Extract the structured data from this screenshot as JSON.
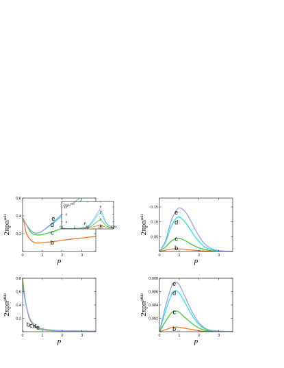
{
  "colors": {
    "b": "#ee7722",
    "c": "#33cc33",
    "d": "#22e5e5",
    "e": "#9a9fe6"
  },
  "chart_data": [
    {
      "id": "p1",
      "type": "line",
      "xlabel": "p",
      "ylabel": "2πpn",
      "ylabel_sup": "eeLi",
      "xlim": [
        0,
        3.7
      ],
      "ylim": [
        0,
        0.6
      ],
      "xticks": [
        0,
        1,
        2,
        3
      ],
      "yticks": [
        0,
        0.2,
        0.4,
        0.6
      ],
      "xticklabels": [
        "0",
        "1",
        "2",
        "3"
      ],
      "yticklabels": [
        "",
        "0.2",
        "0.4",
        "0.6"
      ],
      "series": [
        {
          "name": "b",
          "x": [
            0,
            0.1,
            0.2,
            0.4,
            0.6,
            0.8,
            1.0,
            1.5,
            2.0,
            2.5,
            3.0,
            3.7
          ],
          "y": [
            0.38,
            0.3,
            0.2,
            0.13,
            0.1,
            0.095,
            0.1,
            0.11,
            0.125,
            0.14,
            0.152,
            0.17
          ]
        },
        {
          "name": "c",
          "x": [
            0,
            0.2,
            0.4,
            0.6,
            0.8,
            1.0,
            1.5,
            2.0,
            2.3
          ],
          "y": [
            0.38,
            0.3,
            0.22,
            0.19,
            0.185,
            0.19,
            0.22,
            0.26,
            0.28
          ]
        },
        {
          "name": "d",
          "x": [
            0,
            0.2,
            0.4,
            0.6,
            0.8,
            1.0,
            1.5,
            2.0,
            2.5,
            3.0
          ],
          "y": [
            0.38,
            0.3,
            0.24,
            0.21,
            0.21,
            0.23,
            0.31,
            0.4,
            0.5,
            0.58
          ]
        },
        {
          "name": "e",
          "x": [
            0,
            0.2,
            0.4,
            0.6,
            0.8,
            1.0,
            1.5,
            2.0,
            2.5,
            3.0
          ],
          "y": [
            0.38,
            0.3,
            0.24,
            0.21,
            0.21,
            0.23,
            0.32,
            0.42,
            0.53,
            0.62
          ]
        }
      ],
      "labels": [
        {
          "text": "b",
          "x": 1.5,
          "y": 0.1
        },
        {
          "text": "c",
          "x": 1.5,
          "y": 0.21
        },
        {
          "text": "d",
          "x": 1.5,
          "y": 0.3
        },
        {
          "text": "e",
          "x": 1.55,
          "y": 0.37
        }
      ],
      "inset": {
        "type": "line",
        "ylabel": "2πpn",
        "ylabel_sup": "eeLi",
        "xlabel": "P",
        "x_scale": "log",
        "xlim": [
          0.1,
          1000
        ],
        "ylim": [
          0,
          15
        ],
        "xticks": [
          0.1,
          1,
          10,
          100,
          1000
        ],
        "xticklabels": [
          "0.1",
          "1",
          "10",
          "100",
          "1000"
        ],
        "yticks": [
          4,
          8,
          12
        ],
        "yticklabels": [
          "4",
          "8",
          "12"
        ],
        "series": [
          {
            "name": "b",
            "x": [
              0.1,
              1,
              10,
              30,
              60,
              100,
              150,
              300,
              1000
            ],
            "y": [
              0.2,
              0.2,
              0.5,
              1.2,
              1.8,
              2.0,
              1.6,
              0.8,
              0.3
            ]
          },
          {
            "name": "c",
            "x": [
              0.1,
              1,
              10,
              30,
              60,
              100,
              150,
              300,
              1000
            ],
            "y": [
              0.2,
              0.2,
              0.8,
              2.5,
              4.2,
              4.8,
              3.8,
              1.5,
              0.4
            ]
          },
          {
            "name": "d",
            "x": [
              0.1,
              1,
              10,
              30,
              60,
              100,
              150,
              300,
              1000
            ],
            "y": [
              0.2,
              0.2,
              1.2,
              4.5,
              7.5,
              8.5,
              6.5,
              2.5,
              0.5
            ]
          },
          {
            "name": "e",
            "x": [
              0.1,
              1,
              10,
              30,
              60,
              100,
              150,
              300,
              1000
            ],
            "y": [
              0.2,
              0.2,
              1.5,
              5.5,
              9.0,
              10.5,
              8.0,
              3.0,
              0.6
            ]
          }
        ],
        "labels": [
          {
            "text": "e",
            "x": 100,
            "y": 12.6
          },
          {
            "text": "d",
            "x": 100,
            "y": 9.6
          },
          {
            "text": "c",
            "x": 100,
            "y": 6.0
          },
          {
            "text": "b",
            "x": 100,
            "y": 2.2
          }
        ]
      }
    },
    {
      "id": "p2",
      "type": "line",
      "xlabel": "p",
      "ylabel": "2πpn",
      "ylabel_sup": "eeLi",
      "xlim": [
        0,
        3.7
      ],
      "ylim": [
        0,
        0.18
      ],
      "xticks": [
        0,
        1,
        2,
        3
      ],
      "yticks": [
        0,
        0.05,
        0.1,
        0.15
      ],
      "xticklabels": [
        "0",
        "1",
        "2",
        "3"
      ],
      "yticklabels": [
        "",
        "0.05",
        "0.10",
        "0.15"
      ],
      "series": [
        {
          "name": "b",
          "x": [
            0,
            0.3,
            0.6,
            0.9,
            1.2,
            1.6,
            2.0,
            2.5,
            3.0,
            3.7
          ],
          "y": [
            0,
            0.004,
            0.008,
            0.009,
            0.008,
            0.005,
            0.003,
            0.001,
            0.0003,
            0
          ]
        },
        {
          "name": "c",
          "x": [
            0,
            0.3,
            0.6,
            0.9,
            1.2,
            1.6,
            2.0,
            2.5,
            3.0,
            3.7
          ],
          "y": [
            0,
            0.015,
            0.035,
            0.045,
            0.04,
            0.025,
            0.012,
            0.004,
            0.001,
            0
          ]
        },
        {
          "name": "d",
          "x": [
            0,
            0.3,
            0.6,
            0.9,
            1.1,
            1.4,
            1.8,
            2.2,
            2.6,
            3.0,
            3.7
          ],
          "y": [
            0,
            0.03,
            0.085,
            0.115,
            0.112,
            0.09,
            0.05,
            0.02,
            0.007,
            0.002,
            0
          ]
        },
        {
          "name": "e",
          "x": [
            0,
            0.3,
            0.6,
            0.9,
            1.1,
            1.4,
            1.8,
            2.2,
            2.6,
            3.0,
            3.7
          ],
          "y": [
            0,
            0.035,
            0.105,
            0.142,
            0.145,
            0.125,
            0.075,
            0.032,
            0.011,
            0.003,
            0
          ]
        }
      ],
      "labels": [
        {
          "text": "e",
          "x": 0.85,
          "y": 0.132
        },
        {
          "text": "d",
          "x": 0.85,
          "y": 0.098
        },
        {
          "text": "c",
          "x": 0.85,
          "y": 0.043
        },
        {
          "text": "b",
          "x": 0.85,
          "y": 0.012
        }
      ]
    },
    {
      "id": "p3",
      "type": "line",
      "xlabel": "p",
      "ylabel": "2πpn",
      "ylabel_sup": "pMLi",
      "xlim": [
        0,
        3.7
      ],
      "ylim": [
        0,
        0.8
      ],
      "xticks": [
        0,
        1,
        2,
        3
      ],
      "yticks": [
        0,
        0.2,
        0.4,
        0.6,
        0.8
      ],
      "xticklabels": [
        "0",
        "1",
        "2",
        "3"
      ],
      "yticklabels": [
        "",
        "0.2",
        "0.4",
        "0.6",
        "0.8"
      ],
      "series": [
        {
          "name": "b",
          "x": [
            0,
            0.1,
            0.2,
            0.3,
            0.4,
            0.6,
            0.8,
            1.0,
            1.5,
            2.0,
            3.7
          ],
          "y": [
            0.8,
            0.55,
            0.37,
            0.24,
            0.16,
            0.08,
            0.045,
            0.03,
            0.015,
            0.01,
            0.005
          ]
        },
        {
          "name": "c",
          "x": [
            0,
            0.1,
            0.2,
            0.3,
            0.4,
            0.6,
            0.8,
            1.0,
            1.5,
            2.0,
            3.7
          ],
          "y": [
            0.75,
            0.54,
            0.37,
            0.25,
            0.17,
            0.09,
            0.05,
            0.035,
            0.02,
            0.012,
            0.006
          ]
        },
        {
          "name": "d",
          "x": [
            0,
            0.1,
            0.2,
            0.3,
            0.4,
            0.6,
            0.8,
            1.0,
            1.5,
            2.0,
            3.7
          ],
          "y": [
            0.7,
            0.52,
            0.37,
            0.26,
            0.18,
            0.1,
            0.055,
            0.04,
            0.022,
            0.014,
            0.007
          ]
        },
        {
          "name": "e",
          "x": [
            0,
            0.1,
            0.2,
            0.3,
            0.4,
            0.6,
            0.8,
            1.0,
            1.5,
            2.0,
            3.7
          ],
          "y": [
            0.68,
            0.51,
            0.37,
            0.26,
            0.18,
            0.1,
            0.06,
            0.042,
            0.024,
            0.015,
            0.008
          ]
        }
      ],
      "labels": [
        {
          "text": "b",
          "x": 0.28,
          "y": 0.11
        },
        {
          "text": "c",
          "x": 0.43,
          "y": 0.09
        },
        {
          "text": "d",
          "x": 0.6,
          "y": 0.08
        },
        {
          "text": "e",
          "x": 0.78,
          "y": 0.06
        }
      ]
    },
    {
      "id": "p4",
      "type": "line",
      "xlabel": "p",
      "ylabel": "2πpn",
      "ylabel_sup": "pMLi",
      "xlim": [
        0,
        3.7
      ],
      "ylim": [
        0,
        0.008
      ],
      "xticks": [
        0,
        1,
        2,
        3
      ],
      "yticks": [
        0,
        0.002,
        0.004,
        0.006,
        0.008
      ],
      "xticklabels": [
        "0",
        "1",
        "2",
        "3"
      ],
      "yticklabels": [
        "",
        "0.002",
        "0.004",
        "0.006",
        "0.008"
      ],
      "series": [
        {
          "name": "b",
          "x": [
            0,
            0.3,
            0.6,
            0.8,
            1.0,
            1.3,
            1.7,
            2.1,
            2.6,
            3.7
          ],
          "y": [
            0,
            0.0003,
            0.0006,
            0.0007,
            0.00065,
            0.0005,
            0.0003,
            0.0001,
            2e-05,
            0
          ]
        },
        {
          "name": "c",
          "x": [
            0,
            0.3,
            0.6,
            0.8,
            1.0,
            1.3,
            1.7,
            2.1,
            2.6,
            3.7
          ],
          "y": [
            0,
            0.0015,
            0.0028,
            0.0031,
            0.0029,
            0.0021,
            0.0011,
            0.0004,
            0.0001,
            0
          ]
        },
        {
          "name": "d",
          "x": [
            0,
            0.3,
            0.6,
            0.8,
            1.0,
            1.3,
            1.7,
            2.1,
            2.6,
            3.7
          ],
          "y": [
            0,
            0.003,
            0.0055,
            0.0061,
            0.0058,
            0.0043,
            0.0022,
            0.0008,
            0.0002,
            0
          ]
        },
        {
          "name": "e",
          "x": [
            0,
            0.3,
            0.6,
            0.8,
            1.0,
            1.3,
            1.7,
            2.1,
            2.6,
            3.7
          ],
          "y": [
            0,
            0.0037,
            0.0067,
            0.0074,
            0.007,
            0.0052,
            0.0027,
            0.001,
            0.0002,
            0
          ]
        }
      ],
      "labels": [
        {
          "text": "e",
          "x": 0.75,
          "y": 0.0072
        },
        {
          "text": "d",
          "x": 0.75,
          "y": 0.0058
        },
        {
          "text": "c",
          "x": 0.75,
          "y": 0.0029
        },
        {
          "text": "b",
          "x": 0.75,
          "y": 0.0004
        }
      ]
    }
  ]
}
